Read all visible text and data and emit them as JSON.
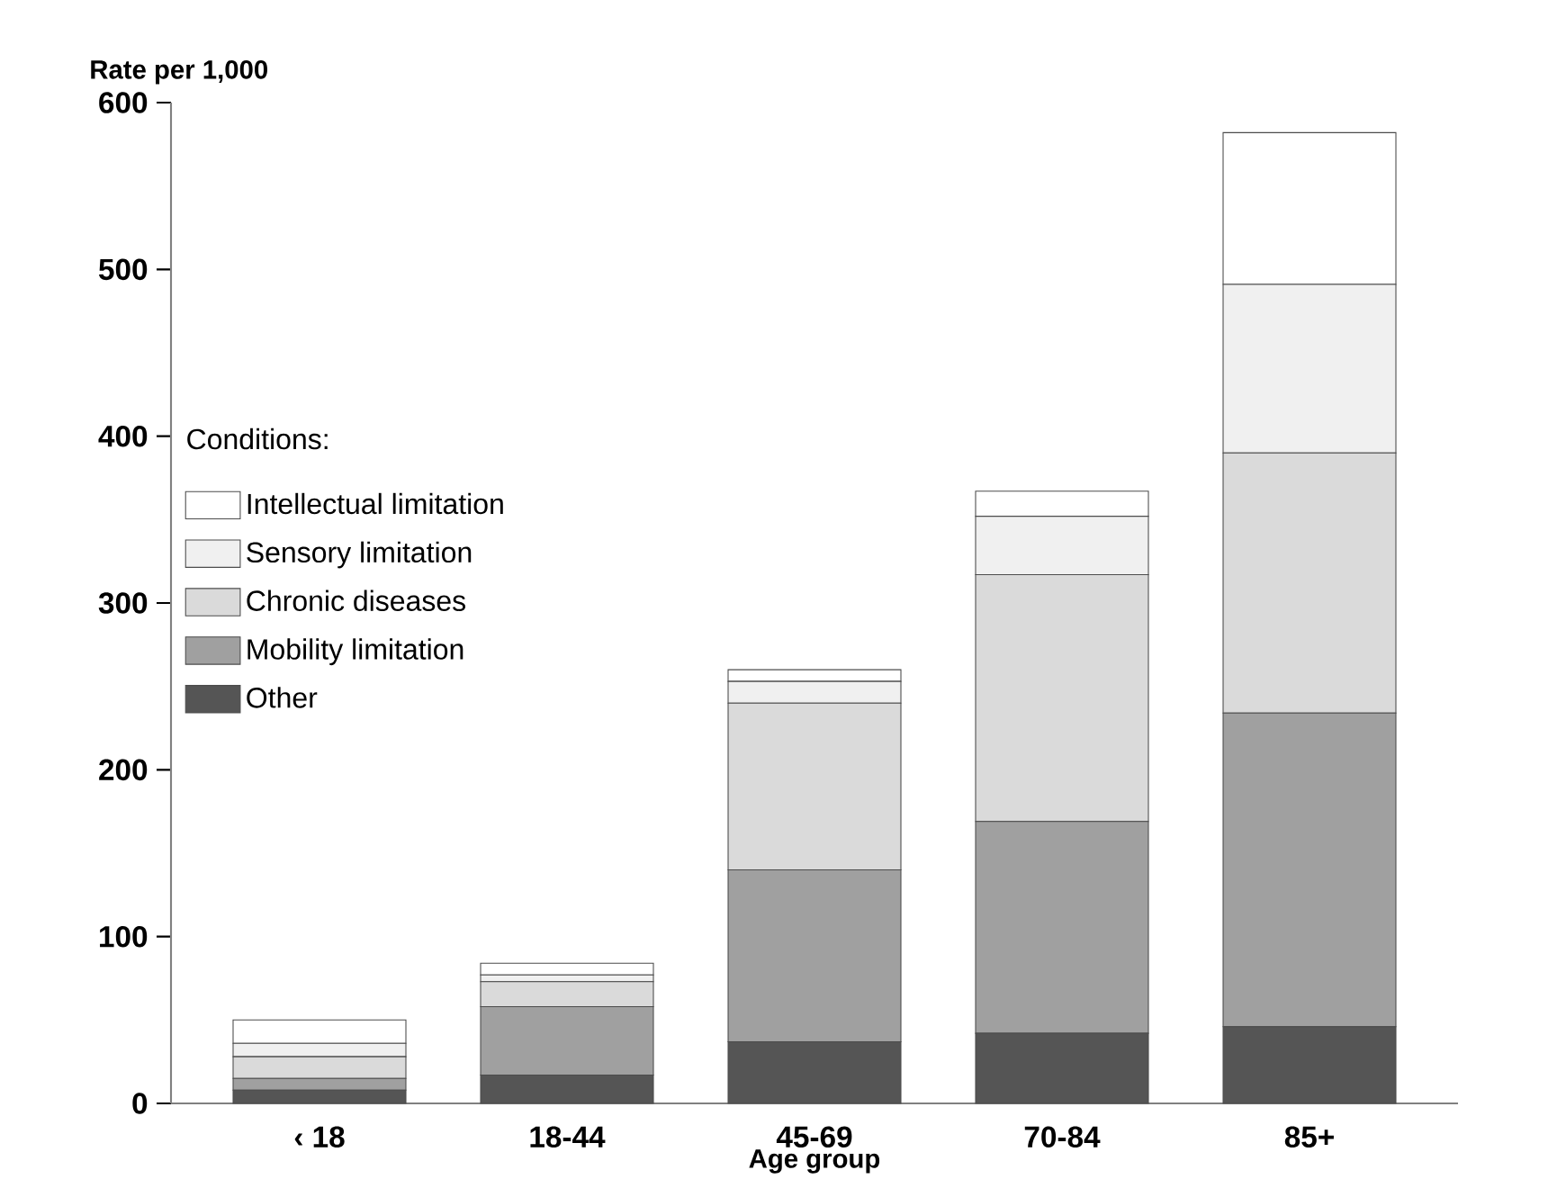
{
  "chart_data": {
    "type": "bar",
    "stacked": true,
    "ylabel": "Rate per 1,000",
    "xlabel": "Age group",
    "legend_title": "Conditions:",
    "categories": [
      "‹ 18",
      "18-44",
      "45-69",
      "70-84",
      "85+"
    ],
    "series": [
      {
        "name": "Other",
        "color": "#555555",
        "values": [
          8,
          17,
          37,
          42,
          46
        ]
      },
      {
        "name": "Mobility limitation",
        "color": "#a0a0a0",
        "values": [
          7,
          41,
          103,
          127,
          188
        ]
      },
      {
        "name": "Chronic diseases",
        "color": "#dadada",
        "values": [
          13,
          15,
          100,
          148,
          156
        ]
      },
      {
        "name": "Sensory limitation",
        "color": "#f0f0f0",
        "values": [
          8,
          4,
          13,
          35,
          101
        ]
      },
      {
        "name": "Intellectual limitation",
        "color": "#ffffff",
        "values": [
          14,
          7,
          7,
          15,
          91
        ]
      }
    ],
    "ylim": [
      0,
      600
    ],
    "yticks": [
      0,
      100,
      200,
      300,
      400,
      500,
      600
    ],
    "legend": "left",
    "grid": false
  }
}
